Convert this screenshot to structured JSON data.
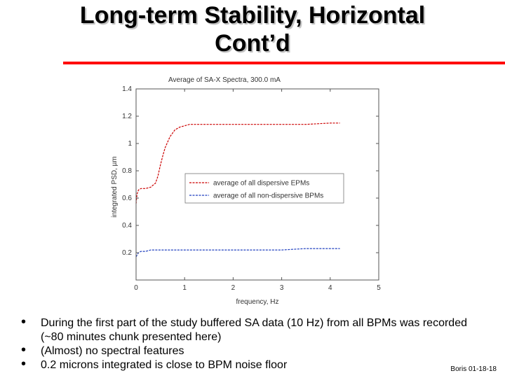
{
  "slide": {
    "title_line1": "Long-term Stability, Horizontal",
    "title_line2": "Cont’d",
    "bullets": [
      "During the first part of the study buffered SA data (10 Hz) from all BPMs was recorded (~80 minutes chunk presented here)",
      "(Almost) no spectral features",
      "0.2 microns integrated is close to BPM noise floor"
    ],
    "footer": "Boris 01-18-18"
  },
  "colors": {
    "accent_rule": "#ff0000",
    "dispersive": "#cc0000",
    "non_dispersive": "#1f3fbf"
  },
  "chart_data": {
    "type": "line",
    "title": "Average of SA-X Spectra, 300.0 mA",
    "xlabel": "frequency, Hz",
    "ylabel": "integrated PSD, µm",
    "xlim": [
      0,
      5
    ],
    "ylim": [
      0,
      1.4
    ],
    "xticks": [
      "0",
      "1",
      "2",
      "3",
      "4",
      "5"
    ],
    "yticks": [
      "",
      "0.2",
      "0.4",
      "0.6",
      "0.8",
      "1",
      "1.2",
      "1.4"
    ],
    "grid": false,
    "legend_position": "center-right",
    "series": [
      {
        "name": "average of all dispersive EPMs",
        "style": "dashed",
        "x": [
          0.0,
          0.02,
          0.05,
          0.1,
          0.2,
          0.3,
          0.4,
          0.45,
          0.5,
          0.55,
          0.6,
          0.7,
          0.8,
          0.9,
          1.0,
          1.1,
          1.2,
          1.3,
          1.4,
          1.5,
          2.0,
          2.5,
          3.0,
          3.5,
          4.0,
          4.2
        ],
        "y": [
          0.56,
          0.63,
          0.66,
          0.67,
          0.67,
          0.68,
          0.71,
          0.76,
          0.84,
          0.91,
          0.97,
          1.05,
          1.1,
          1.12,
          1.13,
          1.14,
          1.14,
          1.14,
          1.14,
          1.14,
          1.14,
          1.14,
          1.14,
          1.14,
          1.15,
          1.15
        ]
      },
      {
        "name": "average of all non-dispersive BPMs",
        "style": "dashed",
        "x": [
          0.0,
          0.05,
          0.1,
          0.2,
          0.3,
          0.4,
          0.5,
          1.0,
          1.5,
          2.0,
          2.5,
          3.0,
          3.5,
          4.0,
          4.2
        ],
        "y": [
          0.17,
          0.2,
          0.21,
          0.21,
          0.22,
          0.22,
          0.22,
          0.22,
          0.22,
          0.22,
          0.22,
          0.22,
          0.23,
          0.23,
          0.23
        ]
      }
    ]
  }
}
